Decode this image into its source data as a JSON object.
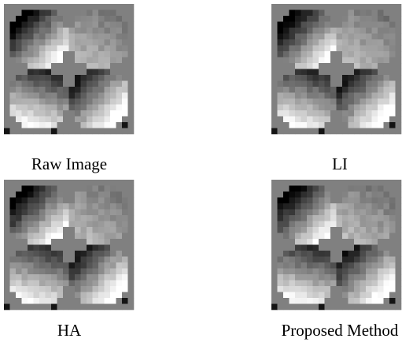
{
  "panels": [
    {
      "caption": "Raw Image"
    },
    {
      "caption": "LI"
    },
    {
      "caption": "HA"
    },
    {
      "caption": "Proposed Method"
    }
  ]
}
